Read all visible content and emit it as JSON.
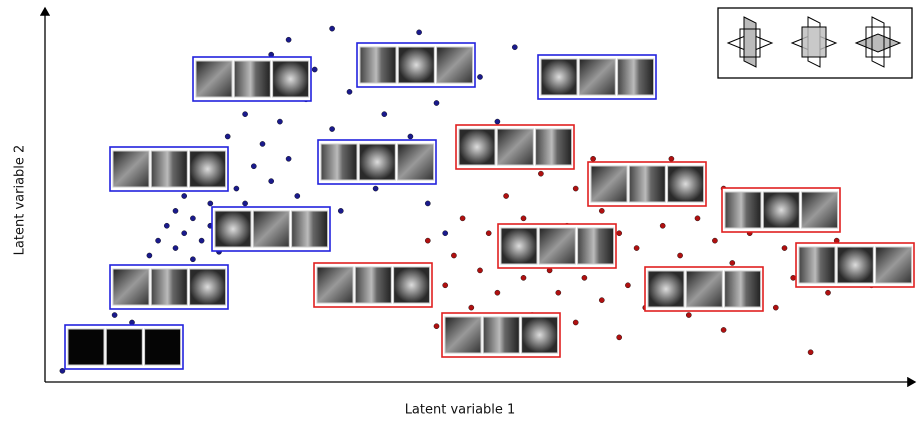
{
  "chart_data": {
    "type": "scatter",
    "x_label": "Latent variable 1",
    "y_label": "Latent variable 2",
    "xlim": [
      0,
      100
    ],
    "ylim": [
      0,
      100
    ],
    "series": [
      {
        "color": "#1a1a8c",
        "x": [
          2,
          3,
          4,
          5,
          6,
          7,
          8,
          9,
          10,
          10,
          11,
          12,
          12,
          13,
          14,
          14,
          15,
          15,
          16,
          16,
          17,
          17,
          18,
          18,
          19,
          19,
          20,
          20,
          21,
          21,
          22,
          22,
          23,
          23,
          24,
          24,
          25,
          25,
          26,
          26,
          27,
          27,
          28,
          28,
          29,
          30,
          30,
          31,
          32,
          33,
          33,
          34,
          35,
          36,
          37,
          38,
          39,
          40,
          41,
          42,
          43,
          44,
          45,
          46,
          47,
          48,
          50,
          52,
          54,
          57,
          60
        ],
        "values": [
          3,
          5,
          8,
          11,
          14,
          10,
          18,
          22,
          16,
          26,
          30,
          24,
          34,
          38,
          28,
          42,
          36,
          46,
          40,
          50,
          33,
          44,
          38,
          55,
          48,
          42,
          60,
          35,
          45,
          66,
          52,
          40,
          72,
          48,
          58,
          80,
          44,
          64,
          54,
          88,
          70,
          38,
          60,
          92,
          50,
          76,
          42,
          84,
          56,
          68,
          95,
          46,
          78,
          62,
          90,
          52,
          72,
          85,
          58,
          66,
          94,
          48,
          75,
          40,
          88,
          60,
          82,
          70,
          90,
          78,
          64
        ]
      },
      {
        "color": "#b01010",
        "x": [
          42,
          43,
          44,
          45,
          46,
          47,
          48,
          49,
          50,
          50,
          51,
          52,
          53,
          53,
          54,
          55,
          55,
          56,
          57,
          57,
          58,
          58,
          59,
          60,
          60,
          61,
          61,
          62,
          63,
          63,
          64,
          64,
          65,
          66,
          66,
          67,
          67,
          68,
          69,
          69,
          70,
          71,
          72,
          72,
          73,
          74,
          75,
          76,
          77,
          78,
          78,
          79,
          80,
          81,
          82,
          83,
          84,
          85,
          86,
          87,
          88,
          89,
          90,
          91,
          93,
          95,
          96
        ],
        "values": [
          22,
          30,
          38,
          15,
          26,
          34,
          44,
          20,
          10,
          30,
          40,
          24,
          50,
          14,
          34,
          28,
          44,
          18,
          38,
          56,
          8,
          30,
          24,
          42,
          34,
          16,
          52,
          28,
          38,
          60,
          22,
          46,
          32,
          12,
          40,
          26,
          54,
          36,
          20,
          48,
          30,
          42,
          24,
          60,
          34,
          18,
          44,
          28,
          38,
          14,
          52,
          32,
          24,
          40,
          30,
          46,
          20,
          36,
          28,
          42,
          8,
          34,
          24,
          38,
          30,
          26,
          34
        ]
      }
    ]
  }
}
